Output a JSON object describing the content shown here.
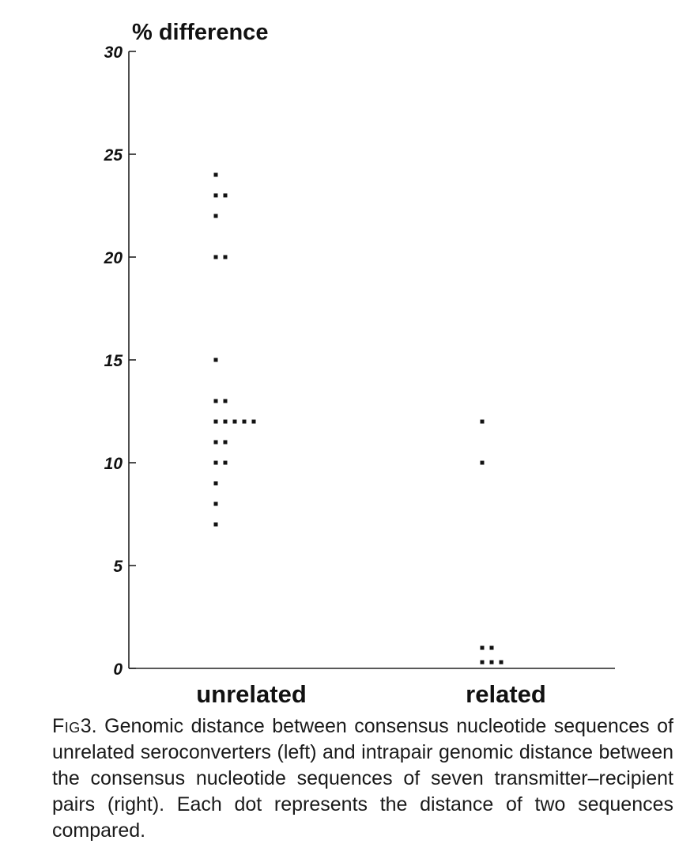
{
  "chart_data": {
    "type": "scatter",
    "title": "",
    "ylabel": "% difference",
    "xlabel": "",
    "ylim": [
      0,
      30
    ],
    "yticks": [
      0,
      5,
      10,
      15,
      20,
      25,
      30
    ],
    "grid": false,
    "categories": [
      "unrelated",
      "related"
    ],
    "series": [
      {
        "values": [
          24,
          23,
          23,
          22,
          20,
          20,
          15,
          13,
          13,
          12,
          12,
          12,
          12,
          12,
          11,
          11,
          10,
          10,
          9,
          8,
          7
        ]
      },
      {
        "values": [
          12,
          10,
          1,
          1,
          0.3,
          0.3,
          0.3
        ]
      }
    ]
  },
  "caption": {
    "label": "Fig",
    "number": "3.",
    "text": " Genomic distance between consensus nucleotide sequences of unrelated seroconverters (left) and intrapair genomic distance between the consensus nucleotide sequences of seven transmitter–recipient pairs (right). Each dot represents the distance of two sequences compared."
  }
}
